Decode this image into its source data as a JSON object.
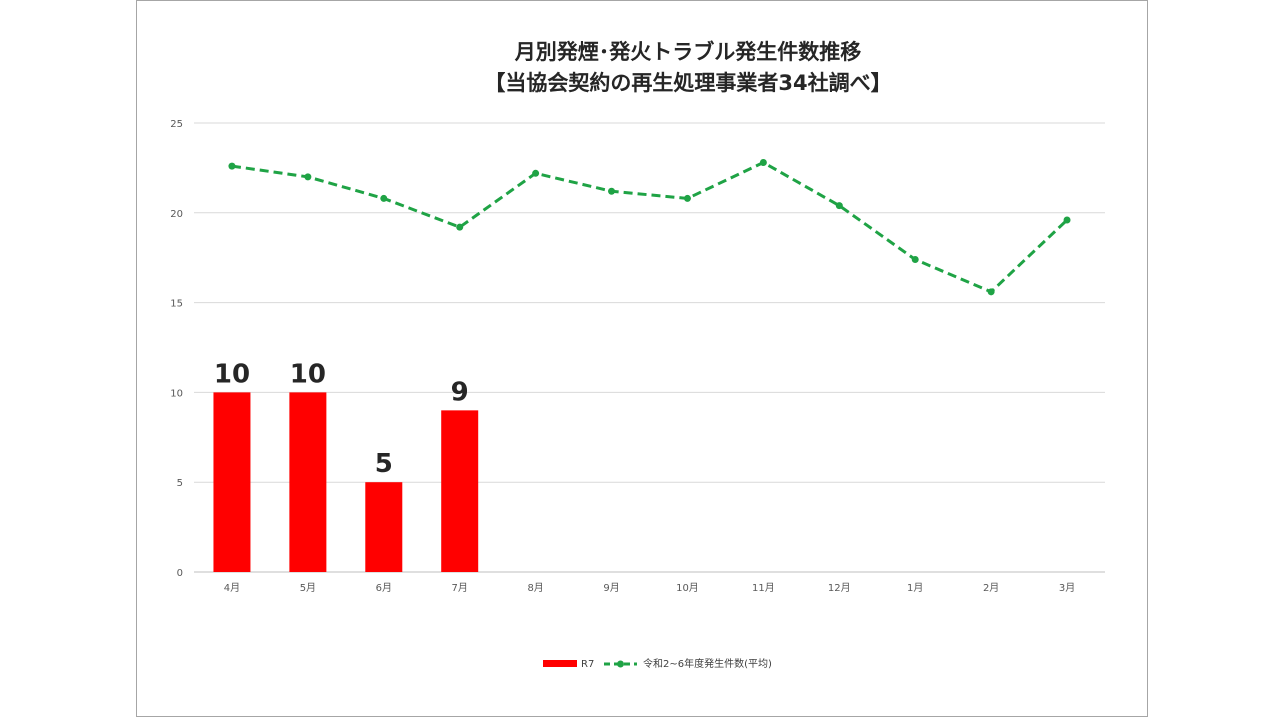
{
  "chart_data": {
    "type": "bar",
    "title_lines": [
      "月別発煙･発火トラブル発生件数推移",
      "【当協会契約の再生処理事業者34社調べ】"
    ],
    "categories": [
      "4月",
      "5月",
      "6月",
      "7月",
      "8月",
      "9月",
      "10月",
      "11月",
      "12月",
      "1月",
      "2月",
      "3月"
    ],
    "series": [
      {
        "name": "R7",
        "type": "bar",
        "color": "#ff0000",
        "values": [
          10,
          10,
          5,
          9,
          null,
          null,
          null,
          null,
          null,
          null,
          null,
          null
        ],
        "data_labels": [
          "10",
          "10",
          "5",
          "9",
          "",
          "",
          "",
          "",
          "",
          "",
          "",
          ""
        ]
      },
      {
        "name": "令和2~6年度発生件数(平均)",
        "type": "line",
        "style": "dashed-with-markers",
        "color": "#1fa345",
        "values": [
          22.6,
          22.0,
          20.8,
          19.2,
          22.2,
          21.2,
          20.8,
          22.8,
          20.4,
          17.4,
          15.6,
          19.6
        ]
      }
    ],
    "ylim": [
      0,
      25
    ],
    "yticks": [
      0,
      5,
      10,
      15,
      20,
      25
    ],
    "xlabel": "",
    "ylabel": "",
    "grid": true,
    "legend_position": "bottom-center"
  }
}
